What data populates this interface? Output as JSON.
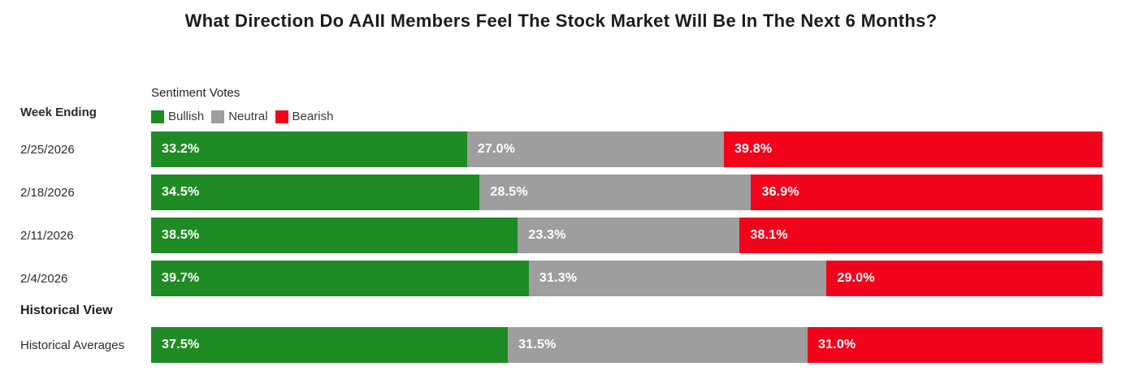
{
  "title": "What Direction Do AAII Members Feel The Stock Market Will Be In The Next 6 Months?",
  "left_header": "Week Ending",
  "section_header": "Historical View",
  "legend": {
    "title": "Sentiment Votes"
  },
  "colors": {
    "bullish": "#1f8b24",
    "neutral": "#9e9e9e",
    "bearish": "#f1041b"
  },
  "groups": [
    {
      "indices": [
        0,
        1,
        2,
        3
      ]
    },
    {
      "indices": [
        4
      ]
    }
  ],
  "chart_data": {
    "type": "bar",
    "stacked": true,
    "orientation": "horizontal",
    "title": "Sentiment Votes",
    "categories": [
      "2/25/2026",
      "2/18/2026",
      "2/11/2026",
      "2/4/2026",
      "Historical Averages"
    ],
    "series": [
      {
        "name": "Bullish",
        "color": "#1f8b24",
        "values": [
          33.2,
          34.5,
          38.5,
          39.7,
          37.5
        ]
      },
      {
        "name": "Neutral",
        "color": "#9e9e9e",
        "values": [
          27.0,
          28.5,
          23.3,
          31.3,
          31.5
        ]
      },
      {
        "name": "Bearish",
        "color": "#f1041b",
        "values": [
          39.8,
          36.9,
          38.1,
          29.0,
          31.0
        ]
      }
    ],
    "value_format": "percent_one_decimal",
    "data_labels": "inside-start",
    "xlim": [
      0,
      100
    ],
    "grid": false,
    "legend_position": "top-left"
  }
}
